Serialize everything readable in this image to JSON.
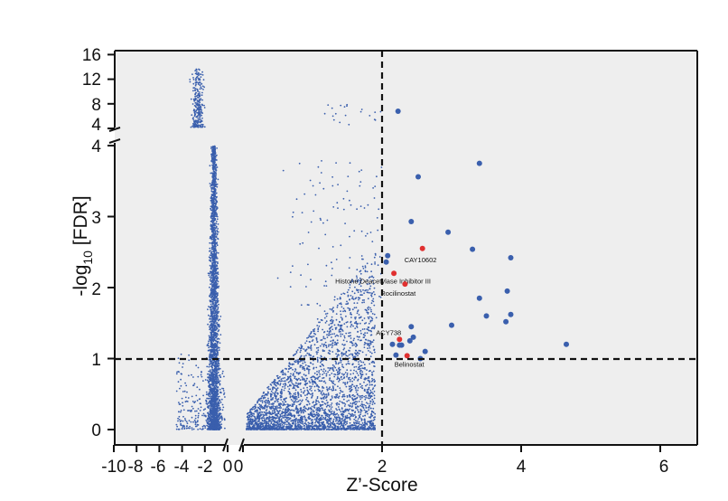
{
  "chart_data": {
    "type": "scatter",
    "title": "",
    "xlabel": "Z’-Score",
    "ylabel_parts": {
      "prefix": "-log",
      "sub": "10",
      "suffix": " [FDR]"
    },
    "x_ticks": [
      "-10",
      "-8",
      "-6",
      "-4",
      "-2",
      "0",
      "0",
      "2",
      "4",
      "6"
    ],
    "y_ticks_lower": [
      "0",
      "1",
      "2",
      "3",
      "4"
    ],
    "y_ticks_upper": [
      "4",
      "8",
      "12",
      "16"
    ],
    "axis_breaks": {
      "x": "between -2 and 0",
      "y": "between 4 and 4"
    },
    "xlim_left": [
      -10,
      0
    ],
    "xlim_right": [
      0,
      6.5
    ],
    "ylim_lower": [
      0,
      4
    ],
    "ylim_upper": [
      4,
      16
    ],
    "grid": false,
    "threshold_lines": {
      "x": 2,
      "y": 1
    },
    "colors": {
      "background": "#eeeeee",
      "points": "#3a5fad",
      "highlight": "#e03030"
    },
    "background_points_note": "thousands of small blue points: dense cluster near x=-2 to 0 and a fan of points from x=0 to 2 rising with y",
    "significant_points": [
      {
        "x": 2.23,
        "y": 6.8,
        "panel": "upper"
      },
      {
        "x": 2.52,
        "y": 3.56
      },
      {
        "x": 3.4,
        "y": 3.75
      },
      {
        "x": 2.42,
        "y": 2.93
      },
      {
        "x": 2.95,
        "y": 2.78
      },
      {
        "x": 3.3,
        "y": 2.54
      },
      {
        "x": 3.85,
        "y": 2.42
      },
      {
        "x": 2.08,
        "y": 2.45
      },
      {
        "x": 2.06,
        "y": 2.36
      },
      {
        "x": 3.8,
        "y": 1.95
      },
      {
        "x": 3.4,
        "y": 1.85
      },
      {
        "x": 3.5,
        "y": 1.6
      },
      {
        "x": 3.85,
        "y": 1.62
      },
      {
        "x": 3.78,
        "y": 1.52
      },
      {
        "x": 2.42,
        "y": 1.45
      },
      {
        "x": 3.0,
        "y": 1.47
      },
      {
        "x": 2.45,
        "y": 1.3
      },
      {
        "x": 2.4,
        "y": 1.25
      },
      {
        "x": 2.15,
        "y": 1.2
      },
      {
        "x": 2.25,
        "y": 1.19
      },
      {
        "x": 2.28,
        "y": 1.19
      },
      {
        "x": 4.65,
        "y": 1.2
      },
      {
        "x": 2.62,
        "y": 1.1
      },
      {
        "x": 2.55,
        "y": 1.0
      },
      {
        "x": 2.2,
        "y": 1.05
      }
    ],
    "highlighted_points": [
      {
        "label": "CAY10602",
        "x": 2.58,
        "y": 2.55
      },
      {
        "label": "Histone Deacetylase Inhibitor III",
        "x": 2.17,
        "y": 2.2
      },
      {
        "label": "Rocilinostat",
        "x": 2.33,
        "y": 2.05
      },
      {
        "label": "ACY738",
        "x": 2.25,
        "y": 1.27
      },
      {
        "label": "Belinostat",
        "x": 2.36,
        "y": 1.04
      }
    ]
  }
}
